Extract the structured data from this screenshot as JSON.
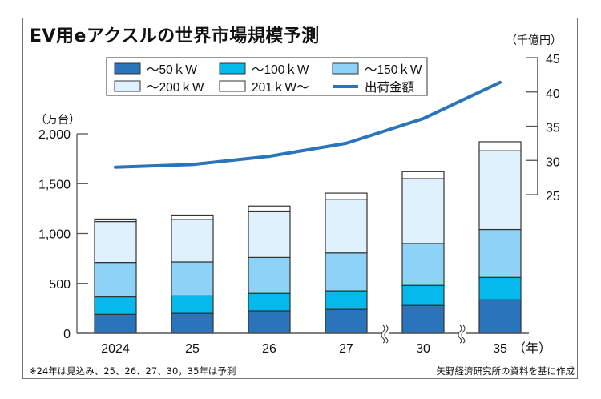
{
  "title": "EV用eアクスルの世界市場規模予測",
  "footnote_left": "※24年は見込み、25、26、27、30，35年は予測",
  "footnote_right": "矢野経済研究所の資料を基に作成",
  "colors": {
    "s50": "#2a74bc",
    "s100": "#05b9ec",
    "s150": "#8dd3f7",
    "s200": "#dff1fc",
    "s201": "#ffffff",
    "line": "#2a74bc",
    "outline": "#333333",
    "axis": "#555555"
  },
  "chart_data": {
    "type": "bar",
    "stacked": true,
    "title": "EV用eアクスルの世界市場規模予測",
    "categories": [
      "2024",
      "25",
      "26",
      "27",
      "30",
      "35"
    ],
    "x_suffix_label": "（年）",
    "axis_breaks_before": [
      "30",
      "35"
    ],
    "ylabel": "（万台）",
    "ylim": [
      0,
      2000
    ],
    "yticks": [
      0,
      500,
      1000,
      1500,
      2000
    ],
    "ytick_labels": [
      "0",
      "500",
      "1,000",
      "1,500",
      "2,000"
    ],
    "y2label": "（千億円）",
    "y2lim": [
      25,
      45
    ],
    "y2ticks": [
      25,
      30,
      35,
      40,
      45
    ],
    "y2tick_labels": [
      "25",
      "30",
      "35",
      "40",
      "45"
    ],
    "series": [
      {
        "name": "～50ｋW",
        "key": "s50",
        "type": "bar",
        "values": [
          190,
          200,
          225,
          240,
          280,
          335
        ]
      },
      {
        "name": "～100ｋW",
        "key": "s100",
        "type": "bar",
        "values": [
          175,
          175,
          175,
          185,
          200,
          225
        ]
      },
      {
        "name": "～150ｋW",
        "key": "s150",
        "type": "bar",
        "values": [
          345,
          340,
          360,
          380,
          420,
          480
        ]
      },
      {
        "name": "～200ｋW",
        "key": "s200",
        "type": "bar",
        "values": [
          410,
          425,
          465,
          535,
          650,
          790
        ]
      },
      {
        "name": "201ｋW～",
        "key": "s201",
        "type": "bar",
        "values": [
          25,
          45,
          50,
          65,
          70,
          90
        ]
      },
      {
        "name": "出荷金額",
        "key": "line",
        "type": "line",
        "axis": "right",
        "values": [
          29.0,
          29.4,
          30.6,
          32.5,
          36.1,
          41.4
        ]
      }
    ],
    "legend": {
      "placement": "top-center",
      "rows": [
        [
          "～50ｋW",
          "～100ｋW",
          "～150ｋW"
        ],
        [
          "～200ｋW",
          "201ｋW～",
          "出荷金額"
        ]
      ]
    },
    "grid": false
  }
}
